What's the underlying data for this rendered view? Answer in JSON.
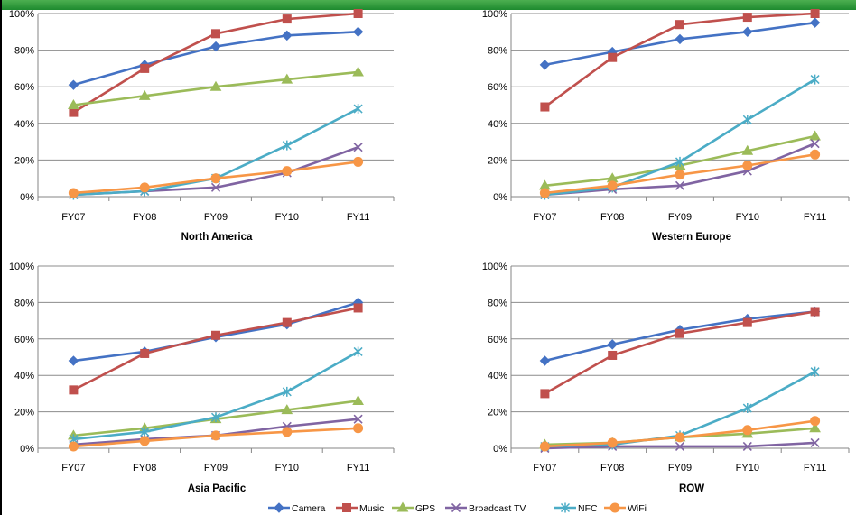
{
  "chart_data": [
    {
      "type": "line",
      "title": "North America",
      "categories": [
        "FY07",
        "FY08",
        "FY09",
        "FY10",
        "FY11"
      ],
      "ylim": [
        0,
        100
      ],
      "yticks": [
        "0%",
        "20%",
        "40%",
        "60%",
        "80%",
        "100%"
      ],
      "series": [
        {
          "name": "Camera",
          "values": [
            61,
            72,
            82,
            88,
            90
          ]
        },
        {
          "name": "Music",
          "values": [
            46,
            70,
            89,
            97,
            100
          ]
        },
        {
          "name": "GPS",
          "values": [
            50,
            55,
            60,
            64,
            68
          ]
        },
        {
          "name": "Broadcast TV",
          "values": [
            1,
            3,
            5,
            13,
            27
          ]
        },
        {
          "name": "NFC",
          "values": [
            1,
            3,
            10,
            28,
            48
          ]
        },
        {
          "name": "WiFi",
          "values": [
            2,
            5,
            10,
            14,
            19
          ]
        }
      ]
    },
    {
      "type": "line",
      "title": "Western Europe",
      "categories": [
        "FY07",
        "FY08",
        "FY09",
        "FY10",
        "FY11"
      ],
      "ylim": [
        0,
        100
      ],
      "yticks": [
        "0%",
        "20%",
        "40%",
        "60%",
        "80%",
        "100%"
      ],
      "series": [
        {
          "name": "Camera",
          "values": [
            72,
            79,
            86,
            90,
            95
          ]
        },
        {
          "name": "Music",
          "values": [
            49,
            76,
            94,
            98,
            100
          ]
        },
        {
          "name": "GPS",
          "values": [
            6,
            10,
            17,
            25,
            33
          ]
        },
        {
          "name": "Broadcast TV",
          "values": [
            1,
            4,
            6,
            14,
            29
          ]
        },
        {
          "name": "NFC",
          "values": [
            1,
            5,
            19,
            42,
            64
          ]
        },
        {
          "name": "WiFi",
          "values": [
            2,
            6,
            12,
            17,
            23
          ]
        }
      ]
    },
    {
      "type": "line",
      "title": "Asia Pacific",
      "categories": [
        "FY07",
        "FY08",
        "FY09",
        "FY10",
        "FY11"
      ],
      "ylim": [
        0,
        100
      ],
      "yticks": [
        "0%",
        "20%",
        "40%",
        "60%",
        "80%",
        "100%"
      ],
      "series": [
        {
          "name": "Camera",
          "values": [
            48,
            53,
            61,
            68,
            80
          ]
        },
        {
          "name": "Music",
          "values": [
            32,
            52,
            62,
            69,
            77
          ]
        },
        {
          "name": "GPS",
          "values": [
            7,
            11,
            16,
            21,
            26
          ]
        },
        {
          "name": "Broadcast TV",
          "values": [
            2,
            5,
            7,
            12,
            16
          ]
        },
        {
          "name": "NFC",
          "values": [
            5,
            9,
            17,
            31,
            53
          ]
        },
        {
          "name": "WiFi",
          "values": [
            1,
            4,
            7,
            9,
            11
          ]
        }
      ]
    },
    {
      "type": "line",
      "title": "ROW",
      "categories": [
        "FY07",
        "FY08",
        "FY09",
        "FY10",
        "FY11"
      ],
      "ylim": [
        0,
        100
      ],
      "yticks": [
        "0%",
        "20%",
        "40%",
        "60%",
        "80%",
        "100%"
      ],
      "series": [
        {
          "name": "Camera",
          "values": [
            48,
            57,
            65,
            71,
            75
          ]
        },
        {
          "name": "Music",
          "values": [
            30,
            51,
            63,
            69,
            75
          ]
        },
        {
          "name": "GPS",
          "values": [
            2,
            3,
            6,
            8,
            11
          ]
        },
        {
          "name": "Broadcast TV",
          "values": [
            0,
            1,
            1,
            1,
            3
          ]
        },
        {
          "name": "NFC",
          "values": [
            1,
            2,
            7,
            22,
            42
          ]
        },
        {
          "name": "WiFi",
          "values": [
            1,
            3,
            6,
            10,
            15
          ]
        }
      ]
    }
  ],
  "legend": [
    {
      "name": "Camera",
      "color": "#4472c4",
      "marker": "diamond"
    },
    {
      "name": "Music",
      "color": "#c0504d",
      "marker": "square"
    },
    {
      "name": "GPS",
      "color": "#9bbb59",
      "marker": "triangle"
    },
    {
      "name": "Broadcast TV",
      "color": "#8064a2",
      "marker": "x"
    },
    {
      "name": "NFC",
      "color": "#4bacc6",
      "marker": "asterisk"
    },
    {
      "name": "WiFi",
      "color": "#f79646",
      "marker": "circle"
    }
  ]
}
